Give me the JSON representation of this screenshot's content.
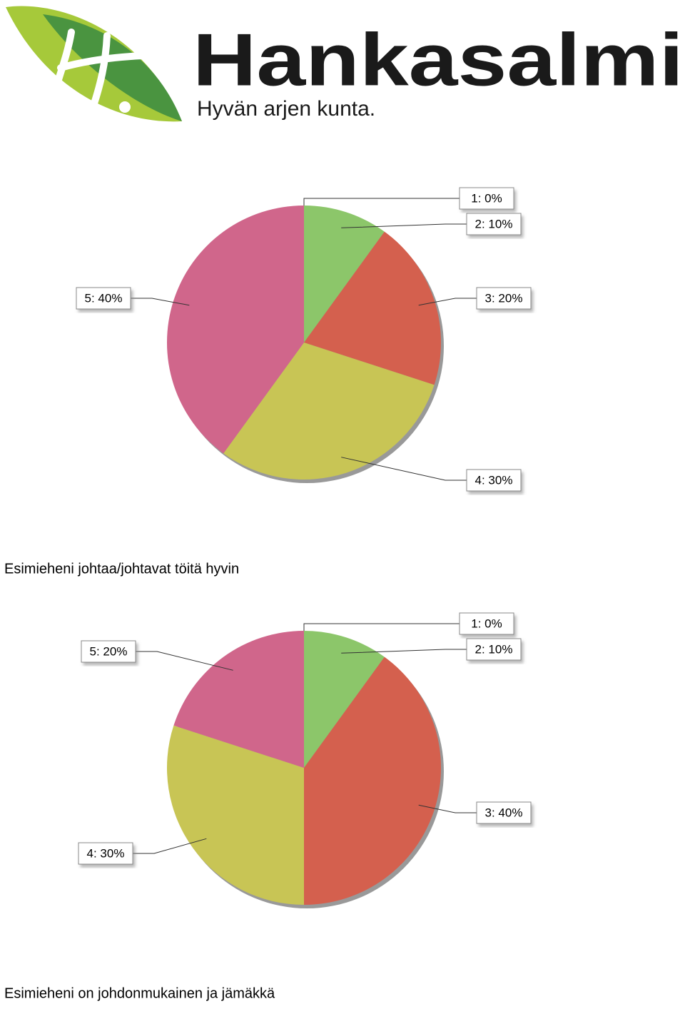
{
  "logo": {
    "name": "Hankasalmi",
    "slogan": "Hyvän arjen kunta."
  },
  "chart_data": [
    {
      "type": "pie",
      "categories": [
        "1",
        "2",
        "3",
        "4",
        "5"
      ],
      "values": [
        0,
        10,
        20,
        30,
        40
      ],
      "value_labels": [
        "1: 0%",
        "2: 10%",
        "3: 20%",
        "4: 30%",
        "5: 40%"
      ],
      "colors": [
        "#3f8a3a",
        "#8cc66a",
        "#d4604e",
        "#c8c555",
        "#d0668b"
      ]
    },
    {
      "type": "pie",
      "categories": [
        "1",
        "2",
        "3",
        "4",
        "5"
      ],
      "values": [
        0,
        10,
        40,
        30,
        20
      ],
      "value_labels": [
        "1: 0%",
        "2: 10%",
        "3: 40%",
        "4: 30%",
        "5: 20%"
      ],
      "colors": [
        "#3f8a3a",
        "#8cc66a",
        "#d4604e",
        "#c8c555",
        "#d0668b"
      ]
    }
  ],
  "captions": [
    "Esimieheni johtaa/johtavat töitä hyvin",
    "Esimieheni on johdonmukainen ja jämäkkä"
  ]
}
